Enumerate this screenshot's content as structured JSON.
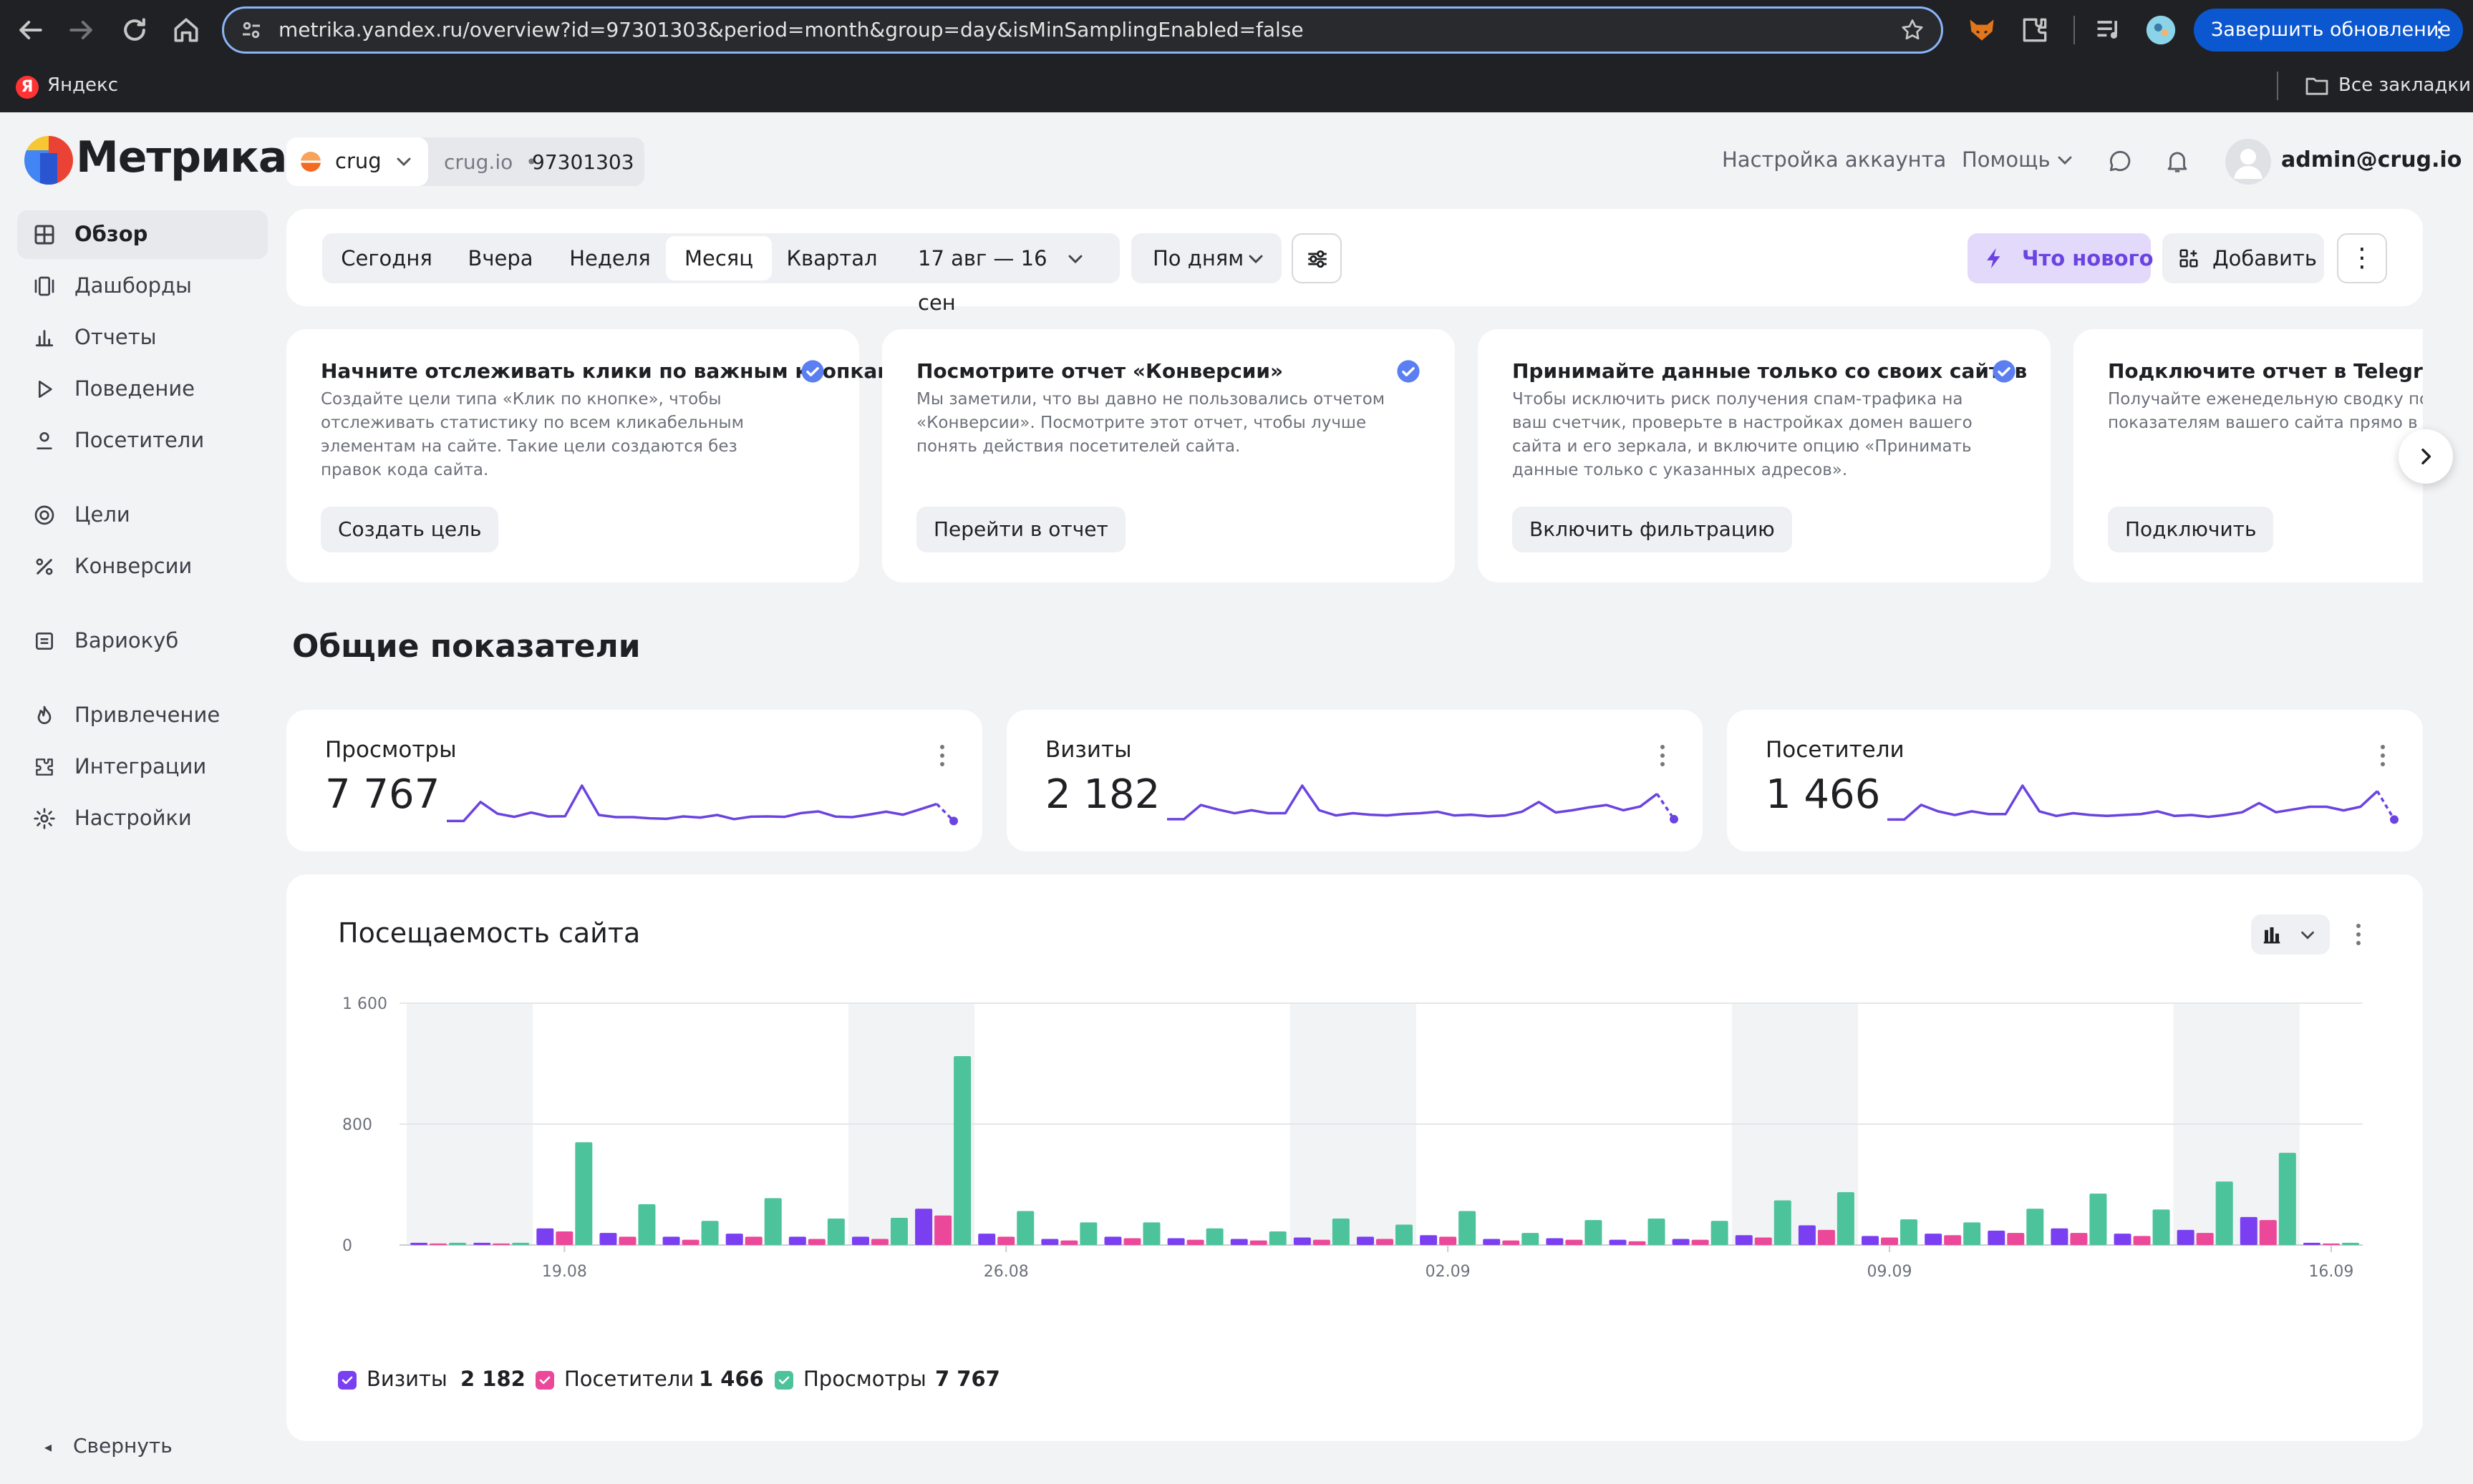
{
  "browser": {
    "url": "metrika.yandex.ru/overview?id=97301303&period=month&group=day&isMinSamplingEnabled=false",
    "update_button": "Завершить обновление",
    "bookmark": "Яндекс",
    "bookmark_icon_letter": "Я",
    "all_bookmarks": "Все закладки"
  },
  "header": {
    "logo": "Метрика",
    "counter_name": "crug",
    "counter_site": "crug.io",
    "counter_sep": "•",
    "counter_id": "97301303",
    "account_settings": "Настройка аккаунта",
    "help": "Помощь",
    "user": "admin@crug.io"
  },
  "sidebar": {
    "items": [
      {
        "label": "Обзор",
        "icon": "grid-icon",
        "active": true
      },
      {
        "label": "Дашборды",
        "icon": "dashboards-icon"
      },
      {
        "label": "Отчеты",
        "icon": "reports-icon"
      },
      {
        "label": "Поведение",
        "icon": "play-icon"
      },
      {
        "label": "Посетители",
        "icon": "person-icon"
      },
      {
        "label": "Цели",
        "icon": "target-icon"
      },
      {
        "label": "Конверсии",
        "icon": "percent-icon"
      },
      {
        "label": "Вариокуб",
        "icon": "variocube-icon"
      },
      {
        "label": "Привлечение",
        "icon": "flame-icon"
      },
      {
        "label": "Интеграции",
        "icon": "puzzle-icon"
      },
      {
        "label": "Настройки",
        "icon": "gear-icon"
      }
    ],
    "collapse": "Свернуть"
  },
  "period": {
    "buttons": [
      "Сегодня",
      "Вчера",
      "Неделя",
      "Месяц",
      "Квартал"
    ],
    "active": "Месяц",
    "range": "17 авг — 16 сен",
    "group_by": "По дням",
    "whats_new": "Что нового",
    "add": "Добавить"
  },
  "cards": [
    {
      "title": "Начните отслеживать клики по важным кнопкам",
      "desc": "Создайте цели типа «Клик по кнопке», чтобы отслеживать статистику по всем кликабельным элементам на сайте. Такие цели создаются без правок кода сайта.",
      "button": "Создать цель"
    },
    {
      "title": "Посмотрите отчет «Конверсии»",
      "desc": "Мы заметили, что вы давно не пользовались отчетом «Конверсии». Посмотрите этот отчет, чтобы лучше понять действия посетителей сайта.",
      "button": "Перейти в отчет"
    },
    {
      "title": "Принимайте данные только со своих сайтов",
      "desc": "Чтобы исключить риск получения спам-трафика на ваш счетчик, проверьте в настройках домен вашего сайта и его зеркала, и включите опцию «Принимать данные только с указанных адресов».",
      "button": "Включить фильтрацию"
    },
    {
      "title": "Подключите отчет в Telegram",
      "desc": "Получайте еженедельную сводку по целевым показателям вашего сайта прямо в Telegram.",
      "button": "Подключить"
    }
  ],
  "metrics": {
    "section_title": "Общие показатели",
    "items": [
      {
        "label": "Просмотры",
        "value": "7 767"
      },
      {
        "label": "Визиты",
        "value": "2 182"
      },
      {
        "label": "Посетители",
        "value": "1 466"
      }
    ]
  },
  "traffic": {
    "title": "Посещаемость сайта",
    "legend": [
      {
        "name": "Визиты",
        "value": "2 182",
        "color": "#7b3ff2"
      },
      {
        "name": "Посетители",
        "value": "1 466",
        "color": "#ec4899"
      },
      {
        "name": "Просмотры",
        "value": "7 767",
        "color": "#4cc39b"
      }
    ]
  },
  "colors": {
    "visits": "#7b3ff2",
    "visitors": "#ec4899",
    "views": "#4cc39b",
    "accent": "#6b43e1",
    "weekend": "#f2f3f5"
  },
  "chart_data": {
    "type": "bar",
    "title": "Посещаемость сайта",
    "categories": [
      "17.08",
      "18.08",
      "19.08",
      "20.08",
      "21.08",
      "22.08",
      "23.08",
      "24.08",
      "25.08",
      "26.08",
      "27.08",
      "28.08",
      "29.08",
      "30.08",
      "31.08",
      "01.09",
      "02.09",
      "03.09",
      "04.09",
      "05.09",
      "06.09",
      "07.09",
      "08.09",
      "09.09",
      "10.09",
      "11.09",
      "12.09",
      "13.09",
      "14.09",
      "15.09",
      "16.09"
    ],
    "x_tick_labels": [
      "19.08",
      "26.08",
      "02.09",
      "09.09",
      "16.09"
    ],
    "y_ticks": [
      "0",
      "800",
      "1 600"
    ],
    "ylim": [
      0,
      1600
    ],
    "weekend_shading": [
      [
        "17.08",
        "18.08"
      ],
      [
        "24.08",
        "25.08"
      ],
      [
        "31.08",
        "01.09"
      ],
      [
        "07.09",
        "08.09"
      ],
      [
        "14.09",
        "15.09"
      ]
    ],
    "series": [
      {
        "name": "Визиты",
        "values": [
          15,
          15,
          110,
          80,
          55,
          75,
          55,
          55,
          240,
          75,
          40,
          55,
          45,
          40,
          50,
          55,
          65,
          40,
          45,
          35,
          40,
          65,
          130,
          60,
          75,
          95,
          110,
          75,
          100,
          185,
          15
        ]
      },
      {
        "name": "Посетители",
        "values": [
          10,
          10,
          90,
          55,
          35,
          55,
          40,
          40,
          195,
          55,
          30,
          45,
          35,
          30,
          35,
          40,
          55,
          30,
          35,
          25,
          35,
          50,
          100,
          50,
          65,
          80,
          80,
          60,
          80,
          165,
          10
        ]
      },
      {
        "name": "Просмотры",
        "values": [
          15,
          15,
          680,
          270,
          160,
          310,
          175,
          180,
          1250,
          225,
          150,
          150,
          110,
          90,
          175,
          135,
          225,
          80,
          165,
          175,
          160,
          295,
          350,
          170,
          150,
          240,
          340,
          235,
          420,
          610,
          15
        ]
      }
    ]
  }
}
